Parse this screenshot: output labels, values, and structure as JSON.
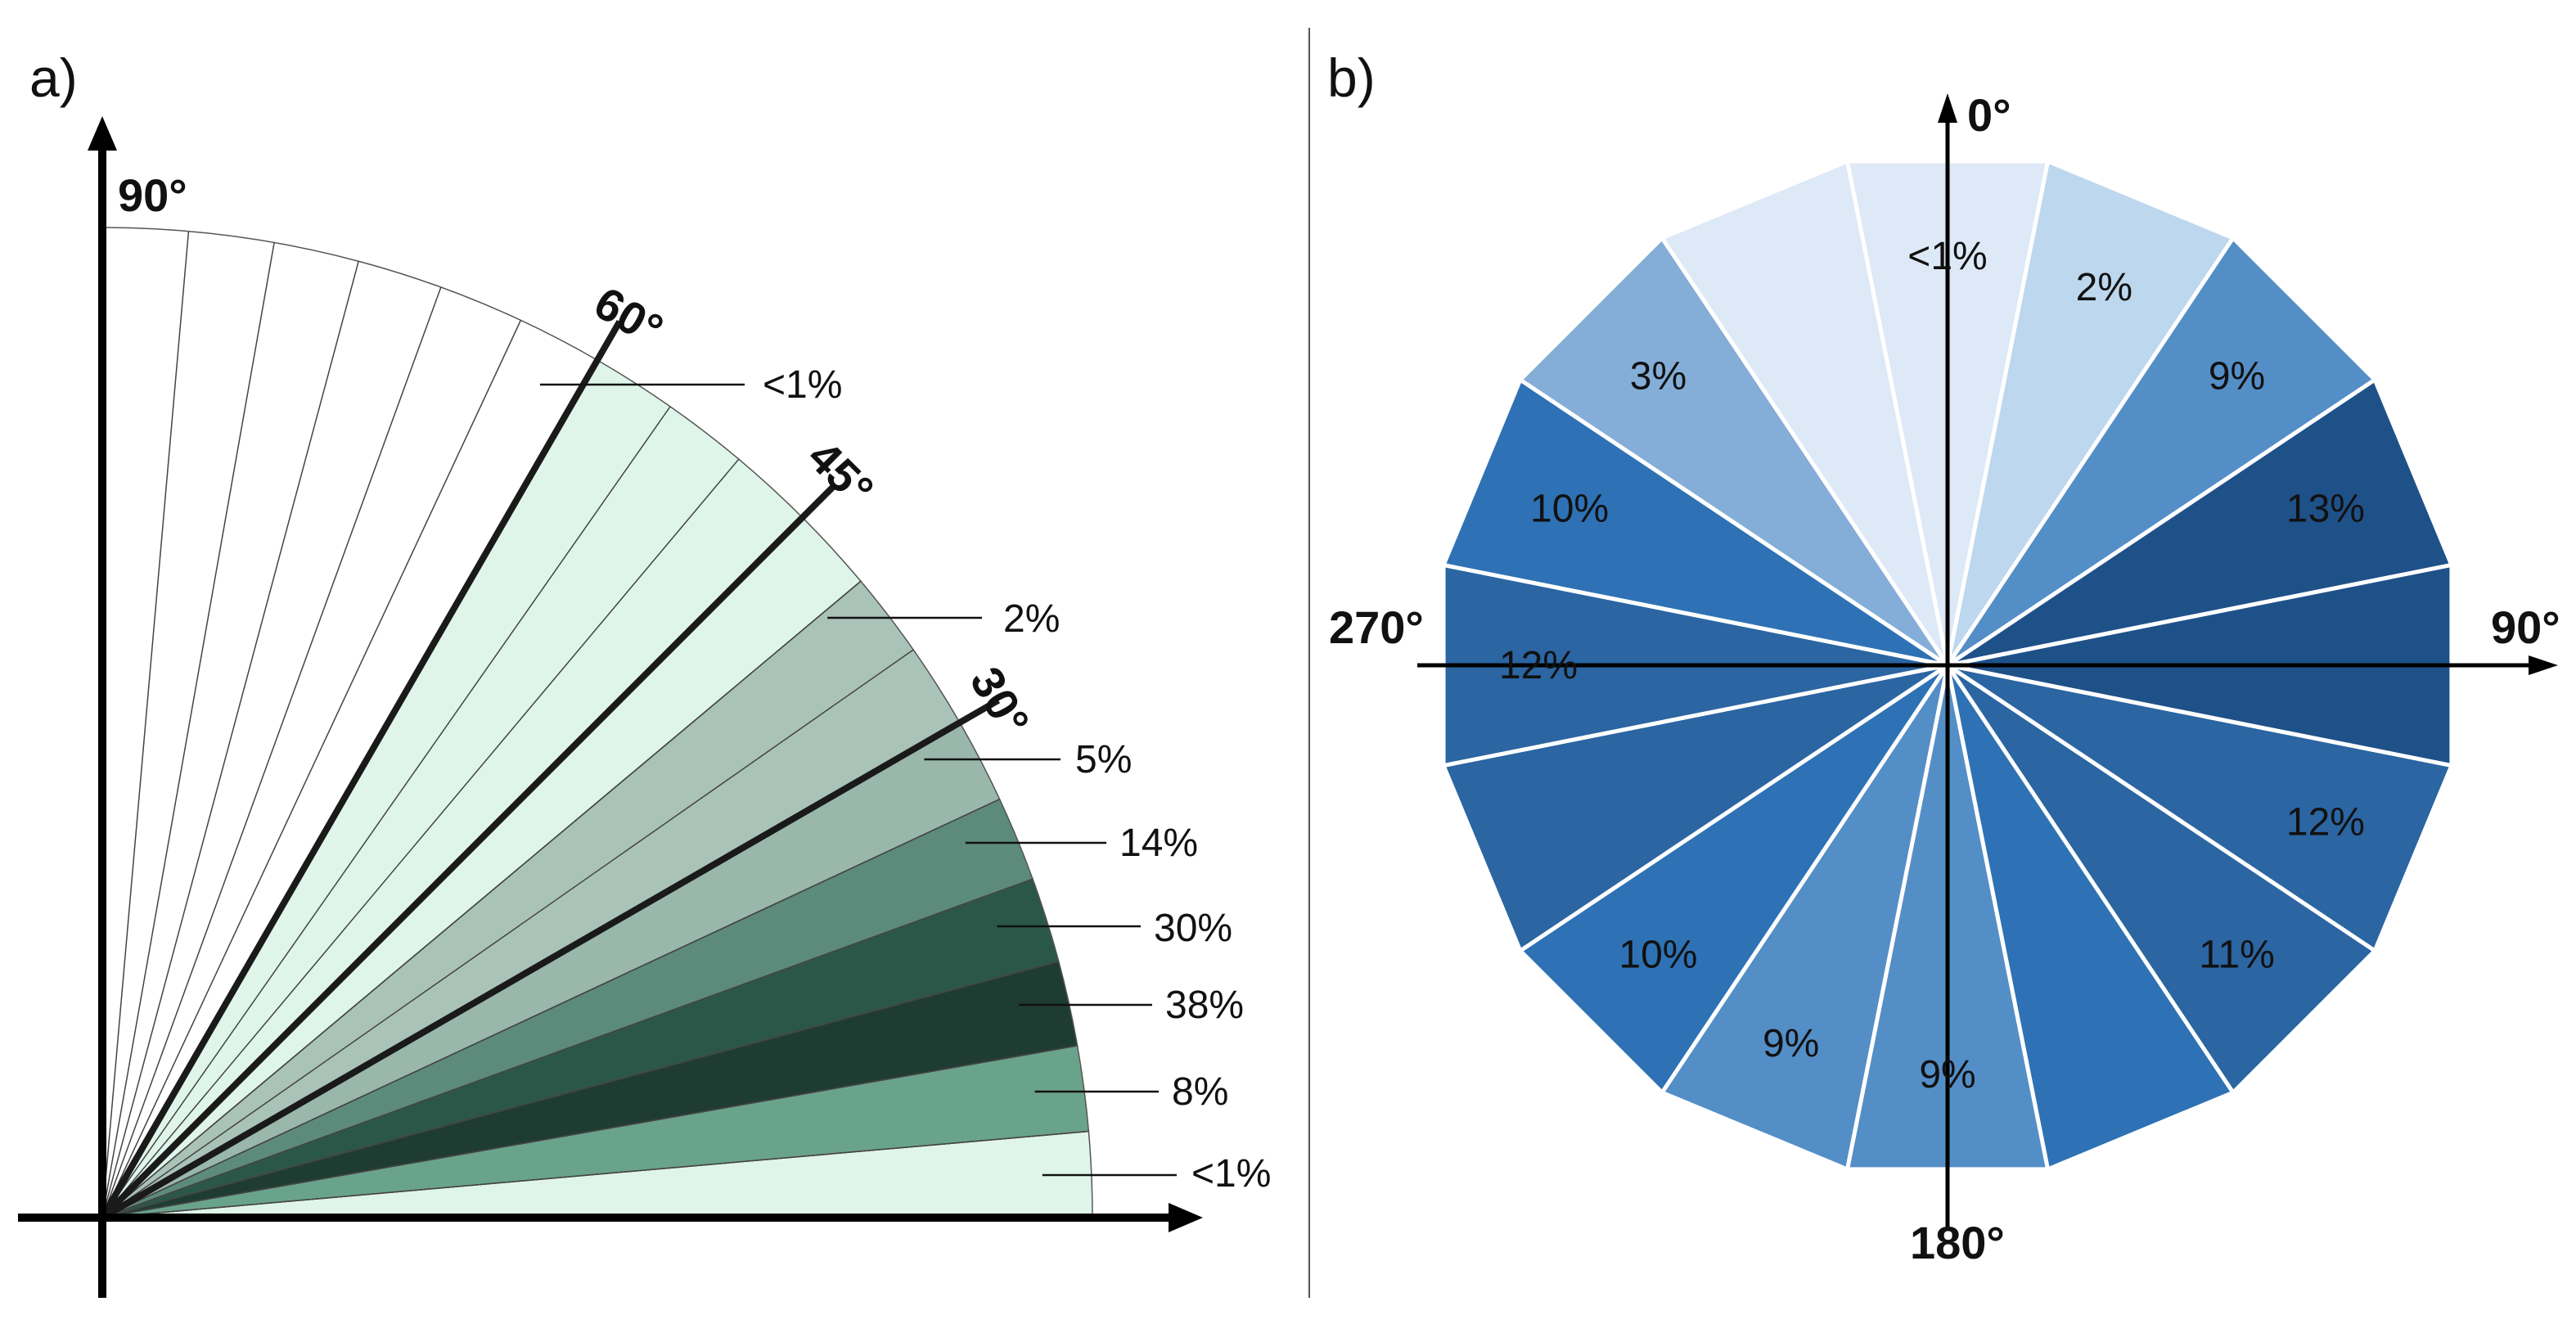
{
  "chart_data": [
    {
      "type": "pie",
      "panel_label": "a)",
      "subtitle": "",
      "sector_width_deg": 5,
      "bins": [
        {
          "range_deg": [
            0,
            5
          ],
          "value": "<1%",
          "color": "#dff5ea"
        },
        {
          "range_deg": [
            5,
            10
          ],
          "value": "8%",
          "color": "#6aa38c"
        },
        {
          "range_deg": [
            10,
            15
          ],
          "value": "38%",
          "color": "#1f3c33"
        },
        {
          "range_deg": [
            15,
            20
          ],
          "value": "30%",
          "color": "#2b5748"
        },
        {
          "range_deg": [
            20,
            25
          ],
          "value": "14%",
          "color": "#5c8b7b"
        },
        {
          "range_deg": [
            25,
            30
          ],
          "value": "5%",
          "color": "#99b7ab"
        },
        {
          "range_deg": [
            30,
            40
          ],
          "value": "2%",
          "color": "#aac3b8"
        },
        {
          "range_deg": [
            40,
            60
          ],
          "value": "<1%",
          "color": "#dff5ea"
        },
        {
          "range_deg": [
            60,
            90
          ],
          "value": "",
          "color": "#ffffff"
        }
      ],
      "reference_angles": [
        {
          "deg": 90,
          "label": "90°"
        },
        {
          "deg": 60,
          "label": "60°"
        },
        {
          "deg": 45,
          "label": "45°"
        },
        {
          "deg": 30,
          "label": "30°"
        }
      ]
    },
    {
      "type": "pie",
      "panel_label": "b)",
      "sector_width_deg": 22.5,
      "sectors": [
        {
          "center_deg": 0,
          "value": "<1%",
          "color": "#dde9f6"
        },
        {
          "center_deg": 22.5,
          "value": "2%",
          "color": "#bdd7ee"
        },
        {
          "center_deg": 45,
          "value": "9%",
          "color": "#548ec7"
        },
        {
          "center_deg": 67.5,
          "value": "13%",
          "color": "#1f5189"
        },
        {
          "center_deg": 90,
          "value": "",
          "color": "#1f5189"
        },
        {
          "center_deg": 112.5,
          "value": "12%",
          "color": "#2b65a2"
        },
        {
          "center_deg": 135,
          "value": "11%",
          "color": "#2b65a2"
        },
        {
          "center_deg": 157.5,
          "value": "",
          "color": "#2e72b5"
        },
        {
          "center_deg": 180,
          "value": "9%",
          "color": "#548ec7"
        },
        {
          "center_deg": 202.5,
          "value": "9%",
          "color": "#548ec7"
        },
        {
          "center_deg": 225,
          "value": "10%",
          "color": "#2e72b5"
        },
        {
          "center_deg": 247.5,
          "value": "",
          "color": "#2b65a2"
        },
        {
          "center_deg": 270,
          "value": "12%",
          "color": "#2b65a2"
        },
        {
          "center_deg": 292.5,
          "value": "10%",
          "color": "#2e72b5"
        },
        {
          "center_deg": 315,
          "value": "3%",
          "color": "#84aed7"
        },
        {
          "center_deg": 337.5,
          "value": "",
          "color": "#dde9f6"
        }
      ],
      "axis_labels": {
        "north": "0°",
        "east": "90°",
        "south": "180°",
        "west": "270°"
      }
    }
  ]
}
